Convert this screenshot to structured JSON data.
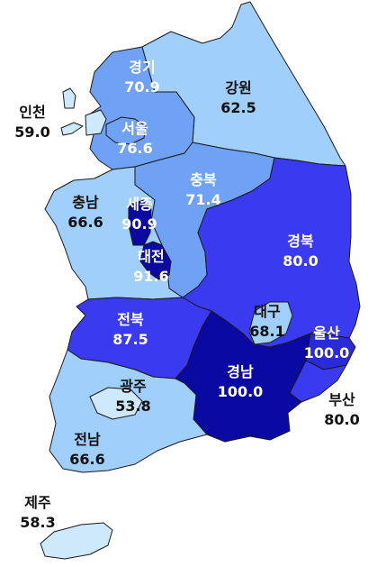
{
  "colors": {
    "lightest": "#cde9fb",
    "light": "#9fcffa",
    "mid_light": "#6fa2f5",
    "mid": "#3a3bf0",
    "dark": "#2a2ad6",
    "darkest": "#0a0aa3",
    "text_dark": "#111111",
    "text_light": "#ffffff"
  },
  "regions": [
    {
      "key": "gyeonggi",
      "name": "경기",
      "value": "70.9"
    },
    {
      "key": "seoul",
      "name": "서울",
      "value": "76.6"
    },
    {
      "key": "incheon",
      "name": "인천",
      "value": "59.0"
    },
    {
      "key": "gangwon",
      "name": "강원",
      "value": "62.5"
    },
    {
      "key": "chungbuk",
      "name": "충북",
      "value": "71.4"
    },
    {
      "key": "chungnam",
      "name": "충남",
      "value": "66.6"
    },
    {
      "key": "sejong",
      "name": "세종",
      "value": "90.9"
    },
    {
      "key": "daejeon",
      "name": "대전",
      "value": "91.6"
    },
    {
      "key": "gyeongbuk",
      "name": "경북",
      "value": "80.0"
    },
    {
      "key": "daegu",
      "name": "대구",
      "value": "68.1"
    },
    {
      "key": "ulsan",
      "name": "울산",
      "value": "100.0"
    },
    {
      "key": "jeonbuk",
      "name": "전북",
      "value": "87.5"
    },
    {
      "key": "gwangju",
      "name": "광주",
      "value": "53.8"
    },
    {
      "key": "jeonnam",
      "name": "전남",
      "value": "66.6"
    },
    {
      "key": "gyeongnam",
      "name": "경남",
      "value": "100.0"
    },
    {
      "key": "busan",
      "name": "부산",
      "value": "80.0"
    },
    {
      "key": "jeju",
      "name": "제주",
      "value": "58.3"
    }
  ]
}
